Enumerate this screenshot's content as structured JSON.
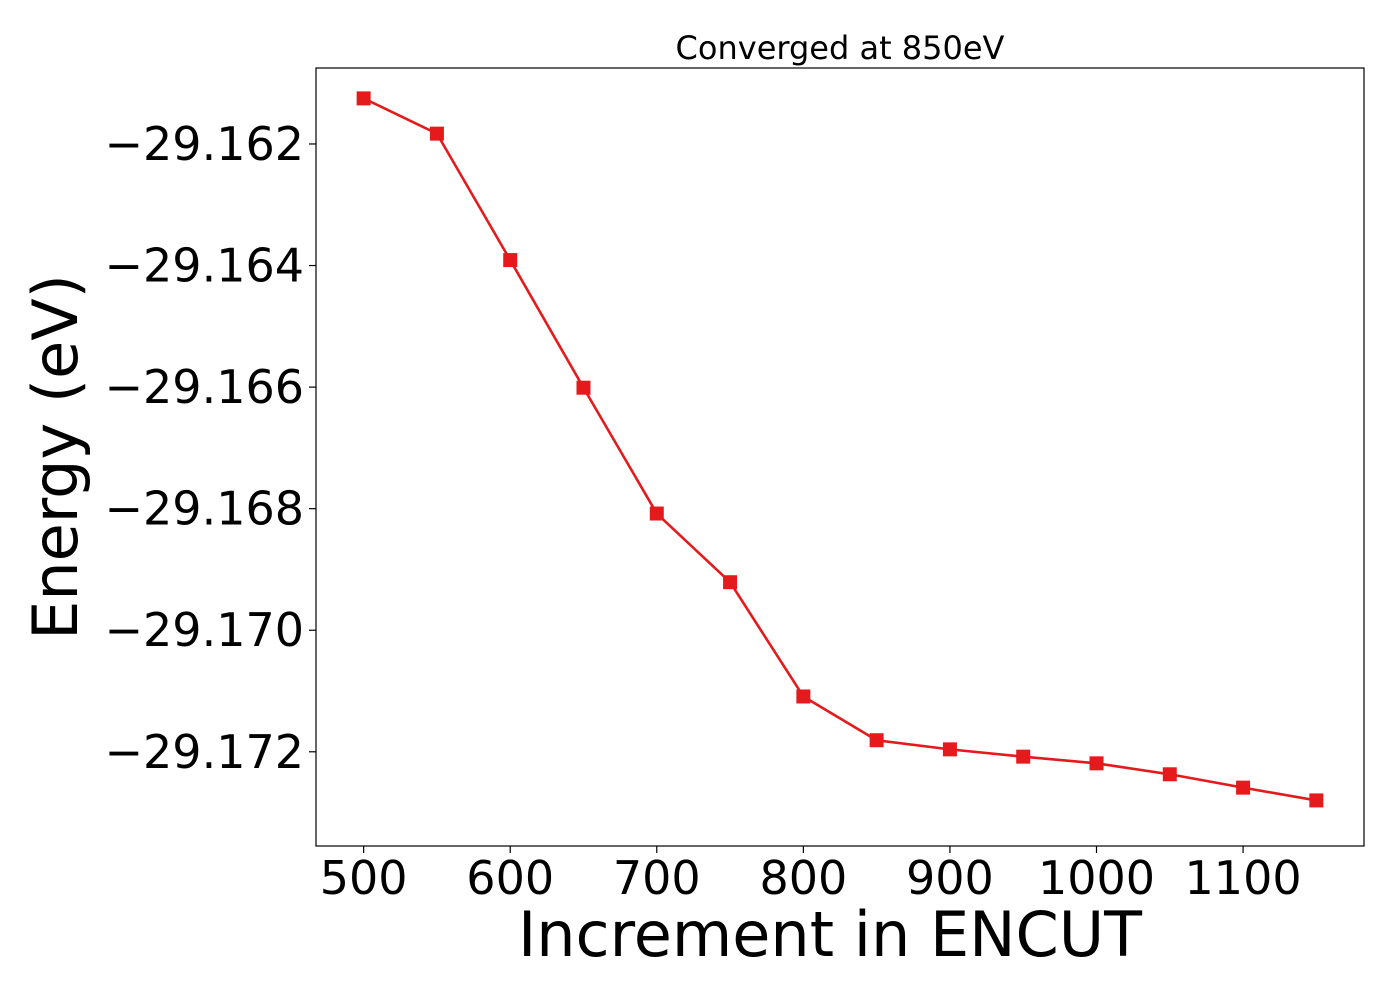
{
  "chart_data": {
    "type": "line",
    "title": "Converged at 850eV",
    "xlabel": "Increment in ENCUT",
    "ylabel": "Energy (eV)",
    "xlim": [
      467.5,
      1182.5
    ],
    "ylim": [
      -29.17355,
      -29.16075
    ],
    "xticks": [
      500,
      600,
      700,
      800,
      900,
      1000,
      1100
    ],
    "xtick_labels": [
      "500",
      "600",
      "700",
      "800",
      "900",
      "1000",
      "1100"
    ],
    "yticks": [
      -29.162,
      -29.164,
      -29.166,
      -29.168,
      -29.17,
      -29.172
    ],
    "ytick_labels": [
      "−29.162",
      "−29.164",
      "−29.166",
      "−29.168",
      "−29.170",
      "−29.172"
    ],
    "grid": false,
    "legend": "none",
    "series": [
      {
        "color": "#e41a1c",
        "marker": "square",
        "x": [
          500,
          550,
          600,
          650,
          700,
          750,
          800,
          850,
          900,
          950,
          1000,
          1050,
          1100,
          1150
        ],
        "y": [
          -29.16125,
          -29.16183,
          -29.16391,
          -29.16601,
          -29.16808,
          -29.16921,
          -29.17109,
          -29.17181,
          -29.17196,
          -29.17208,
          -29.17219,
          -29.17237,
          -29.17259,
          -29.1728
        ]
      }
    ]
  }
}
